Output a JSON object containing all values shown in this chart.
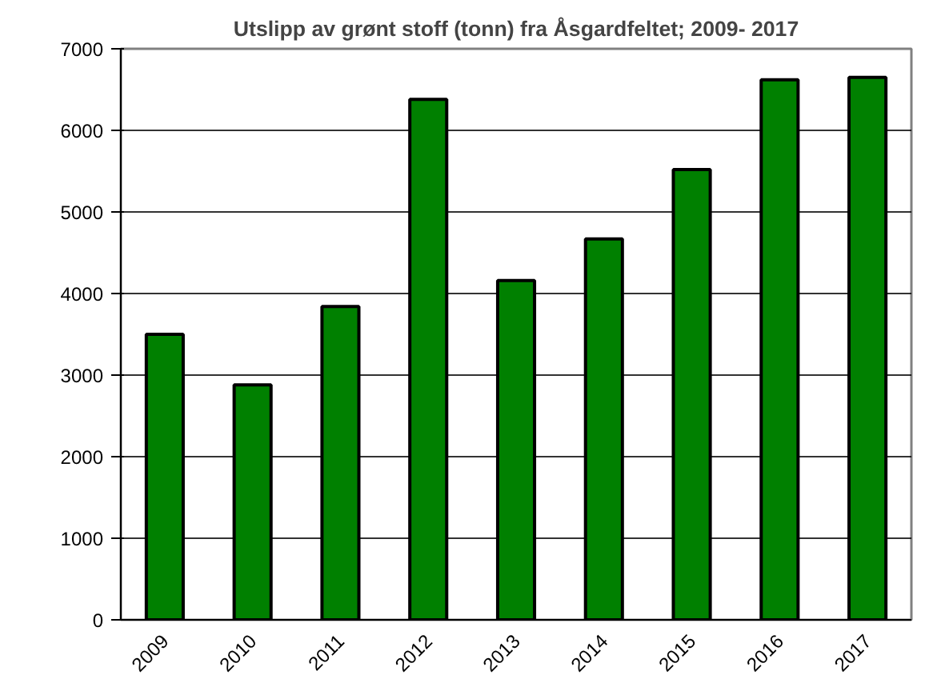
{
  "chart_data": {
    "type": "bar",
    "title": "Utslipp av grønt stoff (tonn) fra Åsgardfeltet; 2009- 2017",
    "categories": [
      "2009",
      "2010",
      "2011",
      "2012",
      "2013",
      "2014",
      "2015",
      "2016",
      "2017"
    ],
    "values": [
      3500,
      2880,
      3840,
      6380,
      4160,
      4670,
      5520,
      6620,
      6650
    ],
    "color": "#008000",
    "ylim": [
      0,
      7000
    ],
    "yticks": [
      0,
      1000,
      2000,
      3000,
      4000,
      5000,
      6000,
      7000
    ],
    "grid": "y"
  }
}
